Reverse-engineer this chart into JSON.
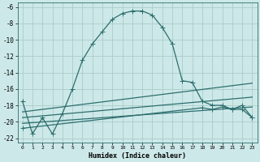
{
  "xlabel": "Humidex (Indice chaleur)",
  "background_color": "#cde8e8",
  "grid_color": "#aacccc",
  "line_color": "#2d6e6e",
  "xlim": [
    -0.5,
    23.5
  ],
  "ylim": [
    -22.5,
    -5.5
  ],
  "xticks": [
    0,
    1,
    2,
    3,
    4,
    5,
    6,
    7,
    8,
    9,
    10,
    11,
    12,
    13,
    14,
    15,
    16,
    17,
    18,
    19,
    20,
    21,
    22,
    23
  ],
  "yticks": [
    -6,
    -8,
    -10,
    -12,
    -14,
    -16,
    -18,
    -20,
    -22
  ],
  "series1_x": [
    0,
    1,
    2,
    3,
    4,
    5,
    6,
    7,
    8,
    9,
    10,
    11,
    12,
    13,
    14,
    15,
    16,
    17,
    18,
    19,
    20,
    21,
    22,
    23
  ],
  "series1_y": [
    -17.5,
    -21.5,
    -19.5,
    -21.5,
    -19.0,
    -16.0,
    -12.5,
    -10.5,
    -9.0,
    -7.5,
    -6.8,
    -6.5,
    -6.5,
    -7.0,
    -8.5,
    -10.5,
    -15.0,
    -15.2,
    -17.5,
    -18.0,
    -18.0,
    -18.5,
    -18.0,
    -19.5
  ],
  "series2_x": [
    0,
    23
  ],
  "series2_y": [
    -18.8,
    -15.3
  ],
  "series3_x": [
    0,
    23
  ],
  "series3_y": [
    -19.5,
    -17.0
  ],
  "series4_x": [
    0,
    23
  ],
  "series4_y": [
    -20.2,
    -18.2
  ],
  "series5_x": [
    0,
    18,
    19,
    20,
    21,
    22,
    23
  ],
  "series5_y": [
    -20.8,
    -18.3,
    -18.5,
    -18.2,
    -18.5,
    -18.5,
    -19.5
  ],
  "linewidth": 0.9,
  "marker_size": 2.5
}
